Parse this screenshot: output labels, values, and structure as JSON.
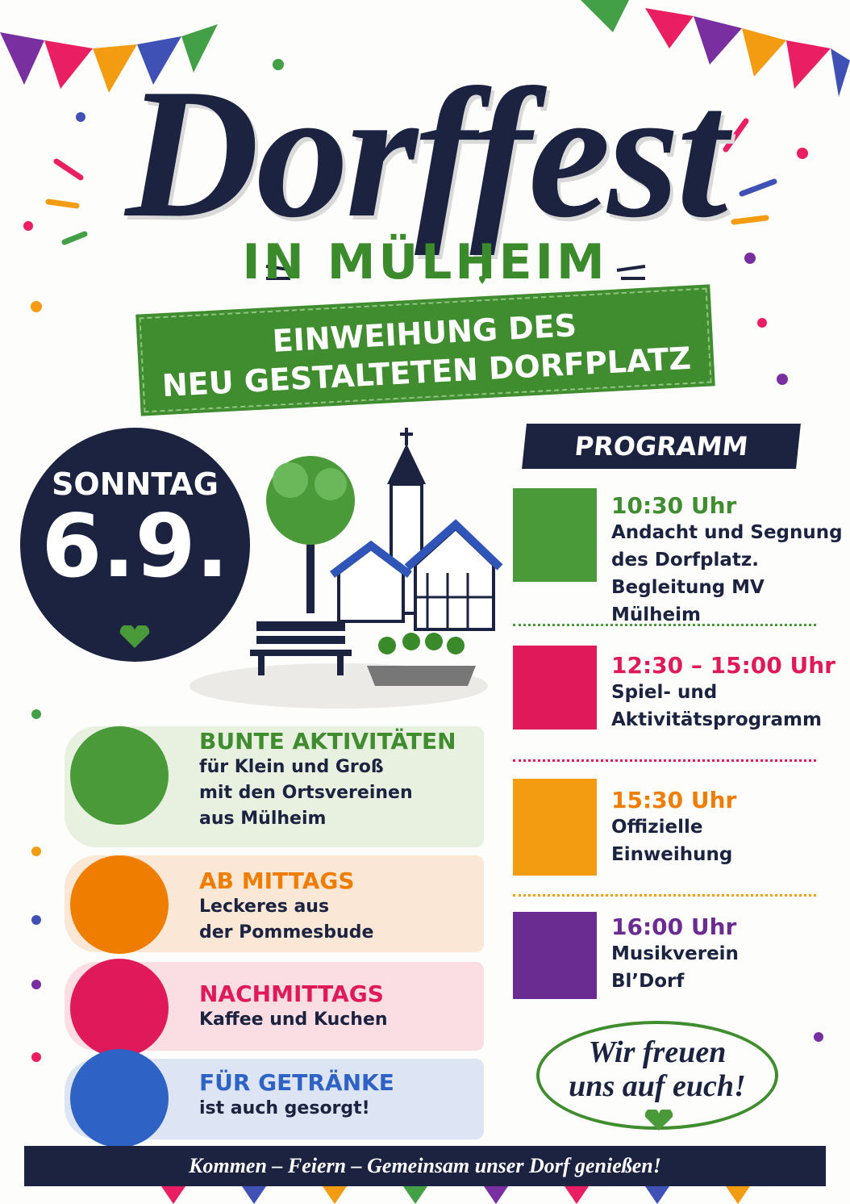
{
  "header": {
    "title": "Dorffest",
    "subtitle": "IN MÜLHEIM",
    "banner": [
      "EINWEIHUNG DES",
      "NEU GESTALTETEN DORFPLATZ"
    ]
  },
  "date": {
    "day": "SONNTAG",
    "date": "6.9."
  },
  "program": {
    "title": "PROGRAMM",
    "items": [
      {
        "time": "10:30 Uhr",
        "lines": [
          "Andacht und Segnung",
          "des Dorfplatz.",
          "Begleitung MV Mülheim"
        ]
      },
      {
        "time": "12:30 – 15:00 Uhr",
        "lines": [
          "Spiel- und",
          "Aktivitätsprogramm"
        ]
      },
      {
        "time": "15:30 Uhr",
        "lines": [
          "Offizielle",
          "Einweihung"
        ]
      },
      {
        "time": "16:00 Uhr",
        "lines": [
          "Musikverein",
          "Bl’Dorf"
        ]
      }
    ]
  },
  "highlights": [
    {
      "title": "BUNTE AKTIVITÄTEN",
      "lines": [
        "für Klein und Groß",
        "mit den Ortsvereinen",
        "aus Mülheim"
      ]
    },
    {
      "title": "AB MITTAGS",
      "lines": [
        "Leckeres aus",
        "der Pommesbude"
      ]
    },
    {
      "title": "NACHMITTAGS",
      "lines": [
        "Kaffee und Kuchen"
      ]
    },
    {
      "title": "FÜR GETRÄNKE",
      "lines": [
        "ist auch gesorgt!"
      ]
    }
  ],
  "closing": [
    "Wir freuen",
    "uns auf euch!"
  ],
  "footer": "Kommen – Feiern – Gemeinsam unser Dorf genießen!"
}
